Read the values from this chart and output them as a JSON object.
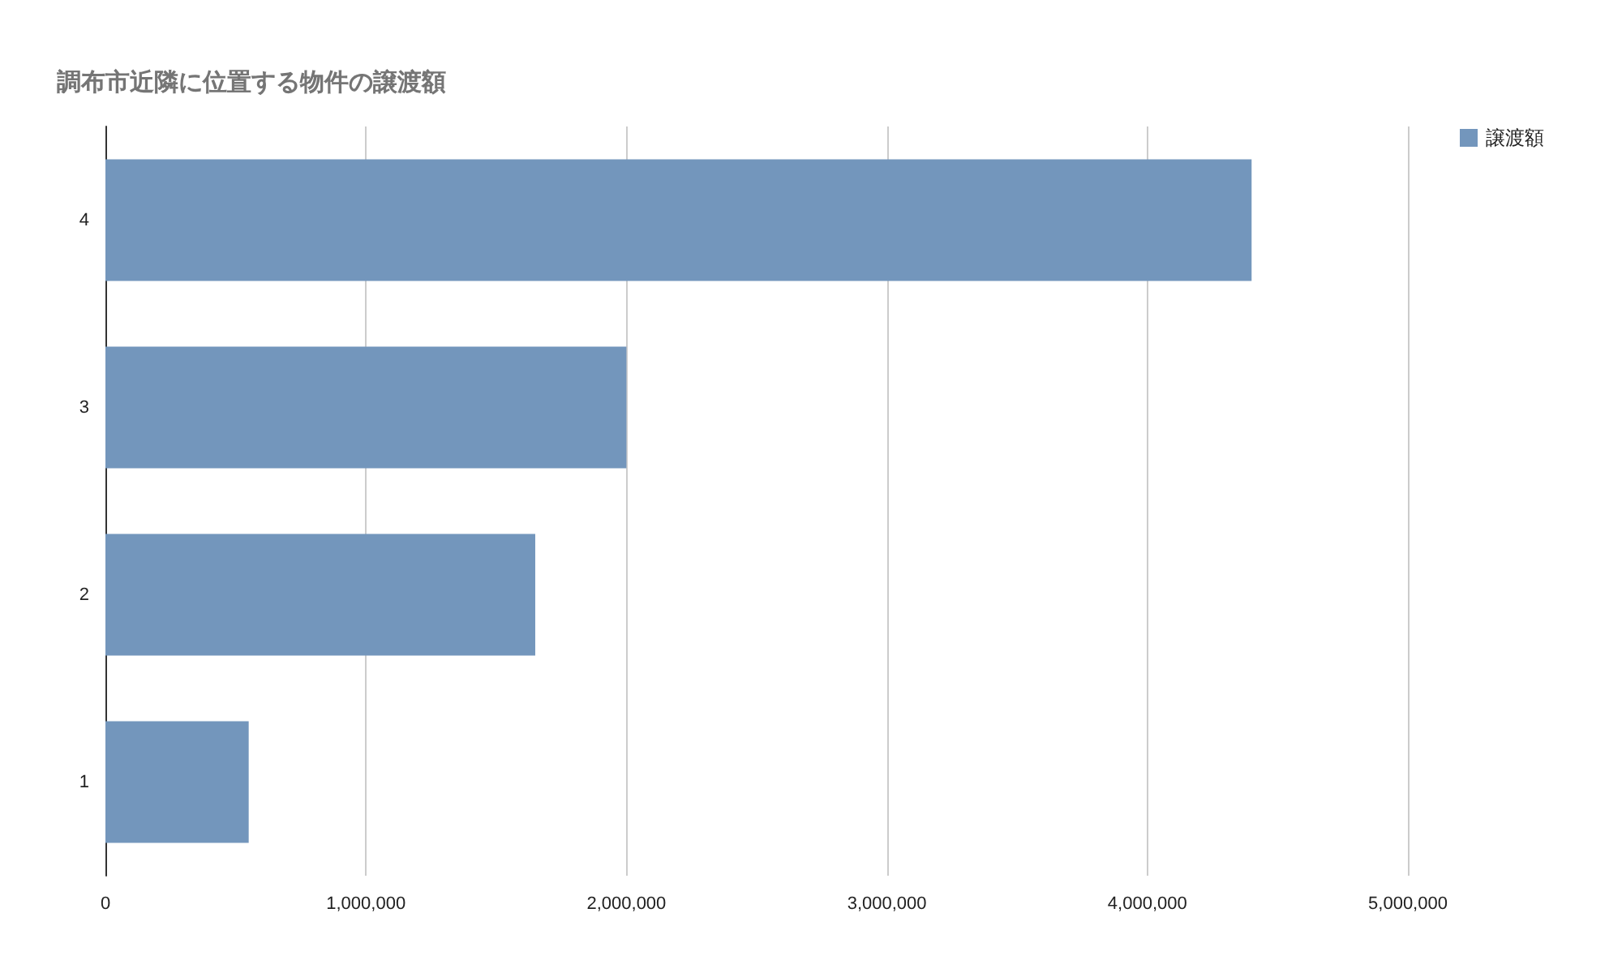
{
  "chart_data": {
    "type": "bar",
    "title": "調布市近隣に位置する物件の譲渡額",
    "orientation": "horizontal",
    "categories": [
      "4",
      "3",
      "2",
      "1"
    ],
    "series": [
      {
        "name": "譲渡額",
        "color": "#7396bc",
        "values": [
          4400000,
          2000000,
          1650000,
          550000
        ]
      }
    ],
    "xlim": [
      0,
      5000000
    ],
    "xticks": [
      {
        "value": 0,
        "label": "0"
      },
      {
        "value": 1000000,
        "label": "1,000,000"
      },
      {
        "value": 2000000,
        "label": "2,000,000"
      },
      {
        "value": 3000000,
        "label": "3,000,000"
      },
      {
        "value": 4000000,
        "label": "4,000,000"
      },
      {
        "value": 5000000,
        "label": "5,000,000"
      }
    ],
    "grid": "x",
    "legend": "top right"
  }
}
